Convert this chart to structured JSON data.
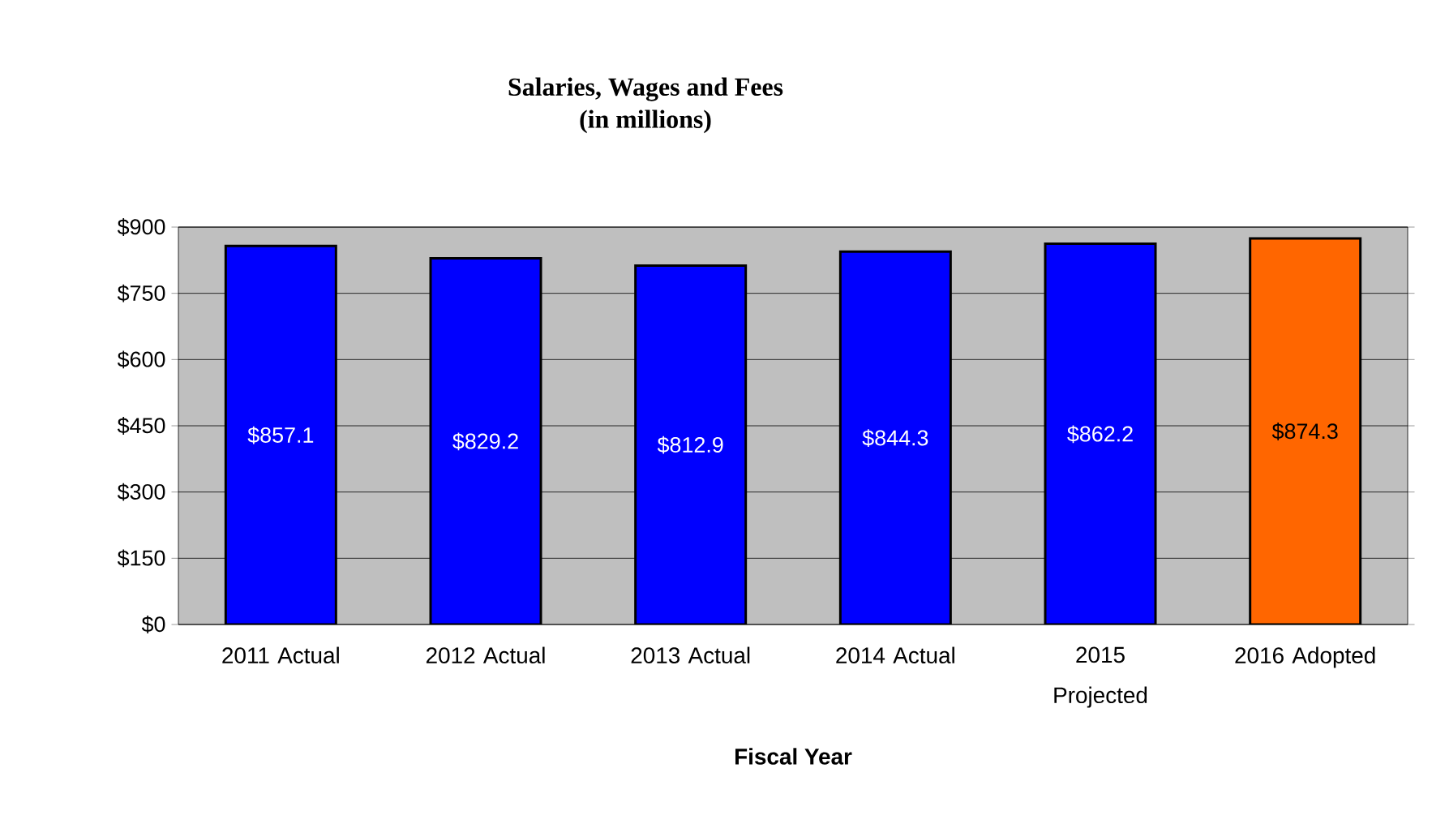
{
  "chart_data": {
    "type": "bar",
    "title": "Salaries, Wages and Fees",
    "subtitle": "(in millions)",
    "xlabel": "Fiscal Year",
    "categories": [
      "2011 Actual",
      "2012 Actual",
      "2013 Actual",
      "2014 Actual",
      "2015 Projected",
      "2016 Adopted"
    ],
    "values": [
      857.1,
      829.2,
      812.9,
      844.3,
      862.2,
      874.3
    ],
    "value_labels": [
      "$857.1",
      "$829.2",
      "$812.9",
      "$844.3",
      "$862.2",
      "$874.3"
    ],
    "colors": [
      "#0000ff",
      "#0000ff",
      "#0000ff",
      "#0000ff",
      "#0000ff",
      "#ff6600"
    ],
    "ylim": [
      0,
      900
    ],
    "yticks": [
      {
        "value": 0,
        "label": "$0"
      },
      {
        "value": 150,
        "label": "$150"
      },
      {
        "value": 300,
        "label": "$300"
      },
      {
        "value": 450,
        "label": "$450"
      },
      {
        "value": 600,
        "label": "$600"
      },
      {
        "value": 750,
        "label": "$750"
      },
      {
        "value": 900,
        "label": "$900"
      }
    ],
    "grid": "y"
  }
}
